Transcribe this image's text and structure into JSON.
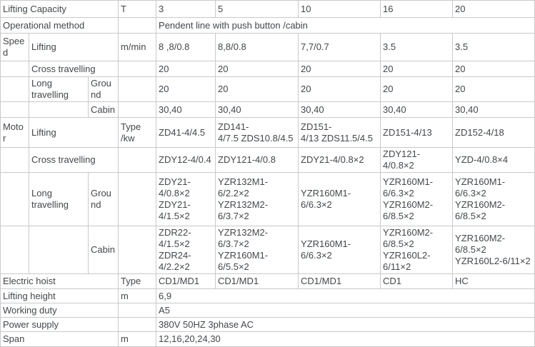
{
  "colors": {
    "text": "#43474b",
    "border": "#c9c9c9",
    "background": "#ffffff"
  },
  "table": {
    "rows": [
      {
        "name": "lifting-capacity",
        "cells": [
          {
            "t": "Lifting Capacity",
            "cs": 3
          },
          {
            "t": "T"
          },
          {
            "t": "3"
          },
          {
            "t": "5"
          },
          {
            "t": "10"
          },
          {
            "t": "16"
          },
          {
            "t": "20"
          }
        ]
      },
      {
        "name": "operational-method",
        "cells": [
          {
            "t": "Operational method",
            "cs": 3
          },
          {
            "t": ""
          },
          {
            "t": "Pendent line with push button /cabin",
            "cs": 5
          }
        ]
      },
      {
        "name": "speed-lifting",
        "cells": [
          {
            "t": "Speed"
          },
          {
            "t": "Lifting",
            "cs": 2
          },
          {
            "t": "m/min"
          },
          {
            "t": "8 ,8/0.8"
          },
          {
            "t": "8,8/0.8"
          },
          {
            "t": "7,7/0.7"
          },
          {
            "t": "3.5"
          },
          {
            "t": "3.5"
          }
        ]
      },
      {
        "name": "speed-cross-travelling",
        "cells": [
          {
            "t": ""
          },
          {
            "t": "Cross travelling",
            "cs": 2
          },
          {
            "t": ""
          },
          {
            "t": "20"
          },
          {
            "t": "20"
          },
          {
            "t": "20"
          },
          {
            "t": "20"
          },
          {
            "t": "20"
          }
        ]
      },
      {
        "name": "speed-long-travelling-ground",
        "cells": [
          {
            "t": ""
          },
          {
            "t": "Long travelling"
          },
          {
            "t": "Ground"
          },
          {
            "t": ""
          },
          {
            "t": "20"
          },
          {
            "t": "20"
          },
          {
            "t": "20"
          },
          {
            "t": "20"
          },
          {
            "t": "20"
          }
        ]
      },
      {
        "name": "speed-long-travelling-cabin",
        "cells": [
          {
            "t": ""
          },
          {
            "t": ""
          },
          {
            "t": "Cabin"
          },
          {
            "t": ""
          },
          {
            "t": "30,40"
          },
          {
            "t": "30,40"
          },
          {
            "t": "30,40"
          },
          {
            "t": "30,40"
          },
          {
            "t": "30,40"
          }
        ]
      },
      {
        "name": "motor-lifting",
        "cells": [
          {
            "t": "Motor"
          },
          {
            "t": "Lifting",
            "cs": 2
          },
          {
            "t": "Type /kw"
          },
          {
            "t": "ZD41-4/4.5"
          },
          {
            "t": "ZD141-\n4/7.5 ZDS10.8/4.5"
          },
          {
            "t": "ZD151-\n4/13 ZDS11.5/4.5"
          },
          {
            "t": "ZD151-4/13"
          },
          {
            "t": "ZD152-4/18"
          }
        ]
      },
      {
        "name": "motor-cross-travelling",
        "cells": [
          {
            "t": ""
          },
          {
            "t": "Cross travelling",
            "cs": 2
          },
          {
            "t": ""
          },
          {
            "t": "ZDY12-4/0.4"
          },
          {
            "t": "ZDY121-4/0.8"
          },
          {
            "t": "ZDY21-4/0.8×2"
          },
          {
            "t": "ZDY121-4/0.8×2"
          },
          {
            "t": "YZD-4/0.8×4"
          }
        ]
      },
      {
        "name": "motor-long-travelling-ground",
        "cells": [
          {
            "t": ""
          },
          {
            "t": "Long travelling"
          },
          {
            "t": "Ground"
          },
          {
            "t": ""
          },
          {
            "t": "ZDY21-\n4/0.8×2\nZDY21-\n4/1.5×2"
          },
          {
            "t": "YZR132M1-6/2.2×2\nYZR132M2-6/3.7×2"
          },
          {
            "t": "YZR160M1-6/6.3×2"
          },
          {
            "t": "YZR160M1-\n6/6.3×2\nYZR160M2-\n6/8.5×2"
          },
          {
            "t": "YZR160M1-\n6/6.3×2\nYZR160M2-\n6/8.5×2"
          }
        ]
      },
      {
        "name": "motor-long-travelling-cabin",
        "cells": [
          {
            "t": ""
          },
          {
            "t": ""
          },
          {
            "t": "Cabin"
          },
          {
            "t": ""
          },
          {
            "t": "ZDR22-\n4/1.5×2\nZDR24-\n4/2.2×2"
          },
          {
            "t": "YZR132M2-6/3.7×2\nYZR160M1-6/5.5×2"
          },
          {
            "t": "YZR160M1-6/6.3×2"
          },
          {
            "t": "YZR160M2-\n6/8.5×2\nYZR160L2-6/11×2"
          },
          {
            "t": "YZR160M2-\n6/8.5×2\nYZR160L2-6/11×2"
          }
        ]
      },
      {
        "name": "electric-hoist",
        "cells": [
          {
            "t": "Electric hoist",
            "cs": 3
          },
          {
            "t": "Type"
          },
          {
            "t": "CD1/MD1"
          },
          {
            "t": "CD1/MD1"
          },
          {
            "t": "CD1/MD1"
          },
          {
            "t": "CD1"
          },
          {
            "t": "HC"
          }
        ]
      },
      {
        "name": "lifting-height",
        "cells": [
          {
            "t": "Lifting height",
            "cs": 3
          },
          {
            "t": "m"
          },
          {
            "t": "6,9",
            "cs": 5
          }
        ]
      },
      {
        "name": "working-duty",
        "cells": [
          {
            "t": "Working duty",
            "cs": 3
          },
          {
            "t": ""
          },
          {
            "t": "A5",
            "cs": 5
          }
        ]
      },
      {
        "name": "power-supply",
        "cells": [
          {
            "t": "Power supply",
            "cs": 3
          },
          {
            "t": ""
          },
          {
            "t": "380V 50HZ 3phase AC",
            "cs": 5
          }
        ]
      },
      {
        "name": "span",
        "cells": [
          {
            "t": "Span",
            "cs": 3
          },
          {
            "t": "m"
          },
          {
            "t": "12,16,20,24,30",
            "cs": 5
          }
        ]
      }
    ]
  }
}
